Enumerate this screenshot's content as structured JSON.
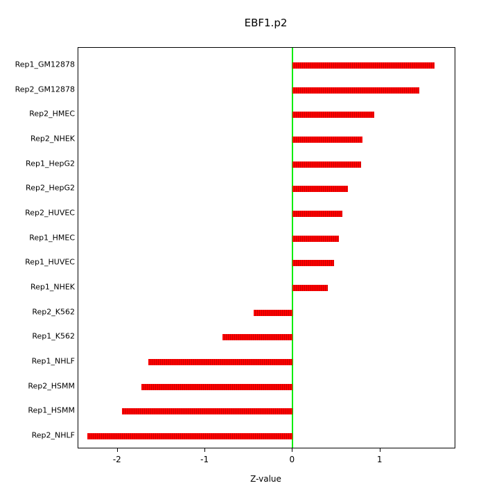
{
  "chart_data": {
    "type": "bar",
    "orientation": "horizontal",
    "title": "EBF1.p2",
    "xlabel": "Z-value",
    "categories": [
      "Rep1_GM12878",
      "Rep2_GM12878",
      "Rep2_HMEC",
      "Rep2_NHEK",
      "Rep1_HepG2",
      "Rep2_HepG2",
      "Rep2_HUVEC",
      "Rep1_HMEC",
      "Rep1_HUVEC",
      "Rep1_NHEK",
      "Rep2_K562",
      "Rep1_K562",
      "Rep1_NHLF",
      "Rep2_HSMM",
      "Rep1_HSMM",
      "Rep2_NHLF"
    ],
    "values": [
      1.62,
      1.45,
      0.93,
      0.8,
      0.78,
      0.63,
      0.57,
      0.53,
      0.47,
      0.4,
      -0.45,
      -0.8,
      -1.65,
      -1.73,
      -1.95,
      -2.35
    ],
    "xlim": [
      -2.45,
      1.85
    ],
    "xticks": [
      -2,
      -1,
      0,
      1
    ],
    "xtick_labels": [
      "-2",
      "-1",
      "0",
      "1"
    ],
    "grid": false,
    "legend": "none",
    "bar_color": "#ff0000",
    "bar_stripe_color": "#cc0000",
    "zero_line_color": "#00ee00",
    "axis_color": "#000000"
  }
}
